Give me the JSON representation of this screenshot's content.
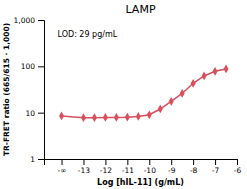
{
  "chart_data": {
    "type": "line",
    "title": "LAMP",
    "xlabel": "Log [hIL-11] (g/mL)",
    "ylabel": "TR-FRET ratio (665/615 · 1,000)",
    "annotation": "LOD: 29 pg/mL",
    "x": [
      -14.0,
      -13.0,
      -12.5,
      -12.0,
      -11.5,
      -11.0,
      -10.5,
      -10.0,
      -9.5,
      -9.0,
      -8.5,
      -8.0,
      -7.5,
      -7.0,
      -6.5
    ],
    "values": [
      8.5,
      7.8,
      7.8,
      7.9,
      7.9,
      8.0,
      8.3,
      9.0,
      12.0,
      17.5,
      26.0,
      43.0,
      62.0,
      78.0,
      88.0
    ],
    "color": "#d94f5c",
    "marker": "diamond",
    "log": "y",
    "grid": false,
    "xlim": [
      -14.8,
      -6.0
    ],
    "ylim": [
      1,
      1000
    ],
    "xticks": [
      {
        "value": -14,
        "label": "-∞"
      },
      -13,
      -12,
      -11,
      -10,
      -9,
      -8,
      -7,
      -6
    ],
    "yticks": [
      1,
      10,
      100,
      {
        "value": 1000,
        "label": "1,000"
      }
    ]
  }
}
